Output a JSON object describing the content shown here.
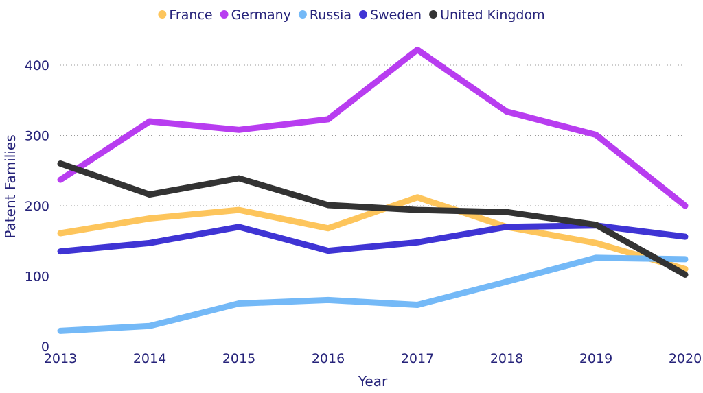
{
  "chart_data": {
    "type": "line",
    "xlabel": "Year",
    "ylabel": "Patent Families",
    "categories": [
      "2013",
      "2014",
      "2015",
      "2016",
      "2017",
      "2018",
      "2019",
      "2020"
    ],
    "ylim": [
      0,
      440
    ],
    "yticks": [
      0,
      100,
      200,
      300,
      400
    ],
    "grid": true,
    "legend_position": "top",
    "series": [
      {
        "name": "France",
        "color": "#fdc55c",
        "values": [
          161,
          182,
          194,
          168,
          212,
          170,
          147,
          110
        ]
      },
      {
        "name": "Germany",
        "color": "#b83df0",
        "values": [
          237,
          320,
          308,
          323,
          422,
          334,
          301,
          200
        ]
      },
      {
        "name": "Russia",
        "color": "#74b9f7",
        "values": [
          22,
          29,
          61,
          66,
          59,
          92,
          126,
          124
        ]
      },
      {
        "name": "Sweden",
        "color": "#3f34d4",
        "values": [
          135,
          147,
          170,
          136,
          148,
          170,
          172,
          156
        ]
      },
      {
        "name": "United Kingdom",
        "color": "#333333",
        "values": [
          260,
          216,
          239,
          201,
          194,
          191,
          173,
          102
        ]
      }
    ]
  }
}
